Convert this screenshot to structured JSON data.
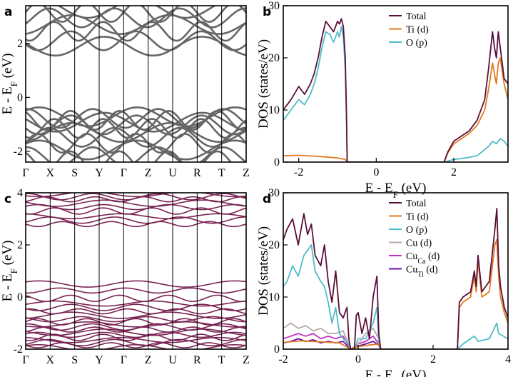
{
  "chart_data": [
    {
      "panel": "a",
      "type": "line",
      "ylabel": "E - E",
      "ylabel_sub": "F",
      "ylabel_unit": " (eV)",
      "kpoints": [
        "Γ",
        "X",
        "S",
        "Y",
        "Γ",
        "Z",
        "U",
        "R",
        "T",
        "Z"
      ],
      "yticks": [
        "-2",
        "0",
        "2"
      ],
      "ylim": [
        -2.4,
        3.4
      ],
      "color": "#666666",
      "bands": {
        "valence_levels": [
          -0.72,
          -0.78,
          -0.85,
          -0.92,
          -1.02,
          -1.15,
          -1.3,
          -1.48,
          -1.7,
          -1.95,
          -2.2,
          -2.35
        ],
        "conduction_levels": [
          1.9,
          2.1,
          2.45,
          2.7,
          2.95,
          3.15,
          3.3
        ]
      },
      "grid": false
    },
    {
      "panel": "b",
      "type": "line",
      "xlabel": "E - E",
      "xlabel_sub": "F",
      "xlabel_unit": " (eV)",
      "ylabel": "DOS (states/eV)",
      "xticks": [
        "-2",
        "0",
        "2"
      ],
      "yticks": [
        "0",
        "10",
        "20",
        "30"
      ],
      "xlim": [
        -2.4,
        3.4
      ],
      "ylim": [
        0,
        30
      ],
      "legend_position": "top-right",
      "series": [
        {
          "name": "Total",
          "color": "#5a0f3a",
          "x": [
            -2.4,
            -2.2,
            -2.0,
            -1.85,
            -1.7,
            -1.6,
            -1.5,
            -1.4,
            -1.3,
            -1.2,
            -1.1,
            -1.0,
            -0.95,
            -0.9,
            -0.85,
            -0.8,
            -0.77,
            -0.75,
            1.75,
            1.85,
            2.0,
            2.2,
            2.4,
            2.6,
            2.8,
            2.9,
            3.0,
            3.05,
            3.1,
            3.15,
            3.2,
            3.3,
            3.4
          ],
          "y": [
            10,
            12,
            14.5,
            13,
            15,
            17,
            20,
            24,
            27,
            26,
            25,
            27,
            26.5,
            27.5,
            26,
            20,
            10,
            0,
            0,
            2,
            4,
            5,
            6,
            8,
            12,
            18,
            25,
            22,
            20,
            25,
            22,
            16,
            15
          ]
        },
        {
          "name": "Ti (d)",
          "color": "#e07a1f",
          "x": [
            -2.4,
            -2.0,
            -1.5,
            -1.0,
            -0.8,
            -0.75,
            1.75,
            1.85,
            2.0,
            2.2,
            2.4,
            2.6,
            2.8,
            2.9,
            3.0,
            3.05,
            3.1,
            3.15,
            3.2,
            3.3,
            3.4
          ],
          "y": [
            1.2,
            1.3,
            1.1,
            0.8,
            0.5,
            0,
            0,
            1.8,
            3.5,
            4.5,
            5.5,
            7,
            10,
            14,
            19,
            17,
            15,
            19,
            20,
            15,
            12
          ]
        },
        {
          "name": "O (p)",
          "color": "#4fbcc7",
          "x": [
            -2.4,
            -2.2,
            -2.0,
            -1.85,
            -1.7,
            -1.6,
            -1.5,
            -1.4,
            -1.3,
            -1.2,
            -1.1,
            -1.0,
            -0.95,
            -0.9,
            -0.85,
            -0.8,
            -0.77,
            -0.75,
            1.75,
            2.0,
            2.3,
            2.6,
            2.9,
            3.0,
            3.1,
            3.2,
            3.3,
            3.4
          ],
          "y": [
            8,
            10,
            12,
            11,
            13,
            15,
            18,
            22,
            25,
            24.5,
            23,
            25,
            24,
            26,
            24,
            18,
            9,
            0,
            0,
            0.5,
            0.8,
            1.2,
            3,
            4,
            3.5,
            4.5,
            4,
            3
          ]
        }
      ]
    },
    {
      "panel": "c",
      "type": "line",
      "ylabel": "E - E",
      "ylabel_sub": "F",
      "ylabel_unit": " (eV)",
      "kpoints": [
        "Γ",
        "X",
        "S",
        "Y",
        "Γ",
        "Z",
        "U",
        "R",
        "T",
        "Z"
      ],
      "yticks": [
        "-2",
        "0",
        "2",
        "4"
      ],
      "ylim": [
        -2,
        4
      ],
      "color": "#7a2352",
      "bands": {
        "levels": [
          3.95,
          3.85,
          3.75,
          3.6,
          3.45,
          3.3,
          3.1,
          2.95,
          2.8,
          0.5,
          0.25,
          -0.05,
          -0.25,
          -0.4,
          -0.55,
          -0.7,
          -0.85,
          -0.95,
          -1.05,
          -1.15,
          -1.25,
          -1.35,
          -1.45,
          -1.55,
          -1.65,
          -1.75,
          -1.85,
          -1.95
        ]
      },
      "grid": false
    },
    {
      "panel": "d",
      "type": "line",
      "xlabel": "E - E",
      "xlabel_sub": "F",
      "xlabel_unit": " (eV)",
      "ylabel": "DOS (states/eV)",
      "xticks": [
        "-2",
        "0",
        "2",
        "4"
      ],
      "yticks": [
        "0",
        "10",
        "20",
        "30"
      ],
      "xlim": [
        -2,
        4
      ],
      "ylim": [
        0,
        30
      ],
      "legend_position": "top-right",
      "series": [
        {
          "name": "Total",
          "color": "#5a0f3a",
          "x": [
            -2.0,
            -1.9,
            -1.75,
            -1.6,
            -1.45,
            -1.35,
            -1.25,
            -1.15,
            -1.0,
            -0.9,
            -0.8,
            -0.7,
            -0.6,
            -0.5,
            -0.4,
            -0.3,
            -0.25,
            -0.2,
            -0.1,
            -0.05,
            0.0,
            0.1,
            0.2,
            0.3,
            0.4,
            0.5,
            0.55,
            0.6,
            2.65,
            2.7,
            2.8,
            3.0,
            3.1,
            3.15,
            3.2,
            3.3,
            3.5,
            3.65,
            3.7,
            3.75,
            3.8,
            3.9,
            4.0
          ],
          "y": [
            21,
            23,
            25,
            20,
            26,
            22,
            24,
            18,
            16,
            20,
            13,
            9,
            15,
            7,
            6,
            8,
            2,
            0,
            0,
            6.5,
            7,
            3,
            6,
            2,
            10,
            14,
            3,
            0,
            0,
            9,
            10,
            11,
            15,
            12,
            18,
            11,
            13,
            23,
            27,
            16,
            12,
            8,
            6
          ]
        },
        {
          "name": "Ti (d)",
          "color": "#e07a1f",
          "x": [
            -2.0,
            -1.5,
            -1.0,
            -0.5,
            -0.2,
            0.0,
            0.3,
            0.55,
            0.6,
            2.65,
            2.7,
            2.8,
            3.0,
            3.1,
            3.15,
            3.2,
            3.3,
            3.5,
            3.65,
            3.7,
            3.75,
            3.8,
            3.9,
            4.0
          ],
          "y": [
            1.3,
            1.6,
            1.4,
            1.2,
            0,
            0.5,
            0.8,
            1.0,
            0,
            0,
            8,
            9,
            10,
            14,
            11,
            17,
            10,
            11,
            20,
            21,
            14,
            10,
            7,
            5
          ]
        },
        {
          "name": "O (p)",
          "color": "#4fbcc7",
          "x": [
            -2.0,
            -1.9,
            -1.75,
            -1.6,
            -1.45,
            -1.35,
            -1.25,
            -1.15,
            -1.0,
            -0.9,
            -0.8,
            -0.7,
            -0.6,
            -0.5,
            -0.4,
            -0.3,
            -0.2,
            -0.1,
            0.0,
            0.2,
            0.4,
            0.5,
            0.55,
            0.6,
            2.65,
            2.8,
            3.0,
            3.1,
            3.15,
            3.2,
            3.5,
            3.7,
            3.75,
            4.0
          ],
          "y": [
            12,
            13,
            16,
            14,
            18,
            19,
            20,
            15,
            13,
            12,
            9,
            5,
            8,
            3,
            2,
            1.5,
            0,
            0,
            2,
            2,
            5,
            8,
            1,
            0,
            0,
            1,
            2,
            2.5,
            2,
            1.5,
            2,
            5,
            3,
            2
          ]
        },
        {
          "name": "Cu (d)",
          "color": "#b8a9a4",
          "x": [
            -2.0,
            -1.8,
            -1.6,
            -1.4,
            -1.2,
            -1.0,
            -0.8,
            -0.6,
            -0.4,
            -0.2,
            0.0,
            0.2,
            0.4,
            0.55,
            0.6
          ],
          "y": [
            4,
            5,
            4,
            4.5,
            3.5,
            4,
            3,
            3,
            3.5,
            0,
            1,
            3,
            4,
            2,
            0
          ]
        },
        {
          "name": "Cu",
          "sub": "Ca",
          "suffix": " (d)",
          "color": "#c62fc6",
          "x": [
            -2.0,
            -1.8,
            -1.6,
            -1.4,
            -1.2,
            -1.0,
            -0.8,
            -0.6,
            -0.4,
            -0.2,
            0.0,
            0.2,
            0.4,
            0.55,
            0.6
          ],
          "y": [
            2,
            2.5,
            3,
            2.5,
            3,
            2,
            2.5,
            2,
            2.5,
            0,
            1,
            1.5,
            2.5,
            1,
            0
          ]
        },
        {
          "name": "Cu",
          "sub": "Ti",
          "suffix": " (d)",
          "color": "#6a0fa8",
          "x": [
            -2.0,
            -1.8,
            -1.6,
            -1.4,
            -1.2,
            -1.0,
            -0.8,
            -0.6,
            -0.4,
            -0.2,
            0.0,
            0.2,
            0.4,
            0.55,
            0.6
          ],
          "y": [
            1.2,
            1.5,
            2,
            1.5,
            1.8,
            1.2,
            1.5,
            1.2,
            1.5,
            0,
            0.6,
            1,
            1.5,
            0.8,
            0
          ]
        }
      ]
    }
  ]
}
